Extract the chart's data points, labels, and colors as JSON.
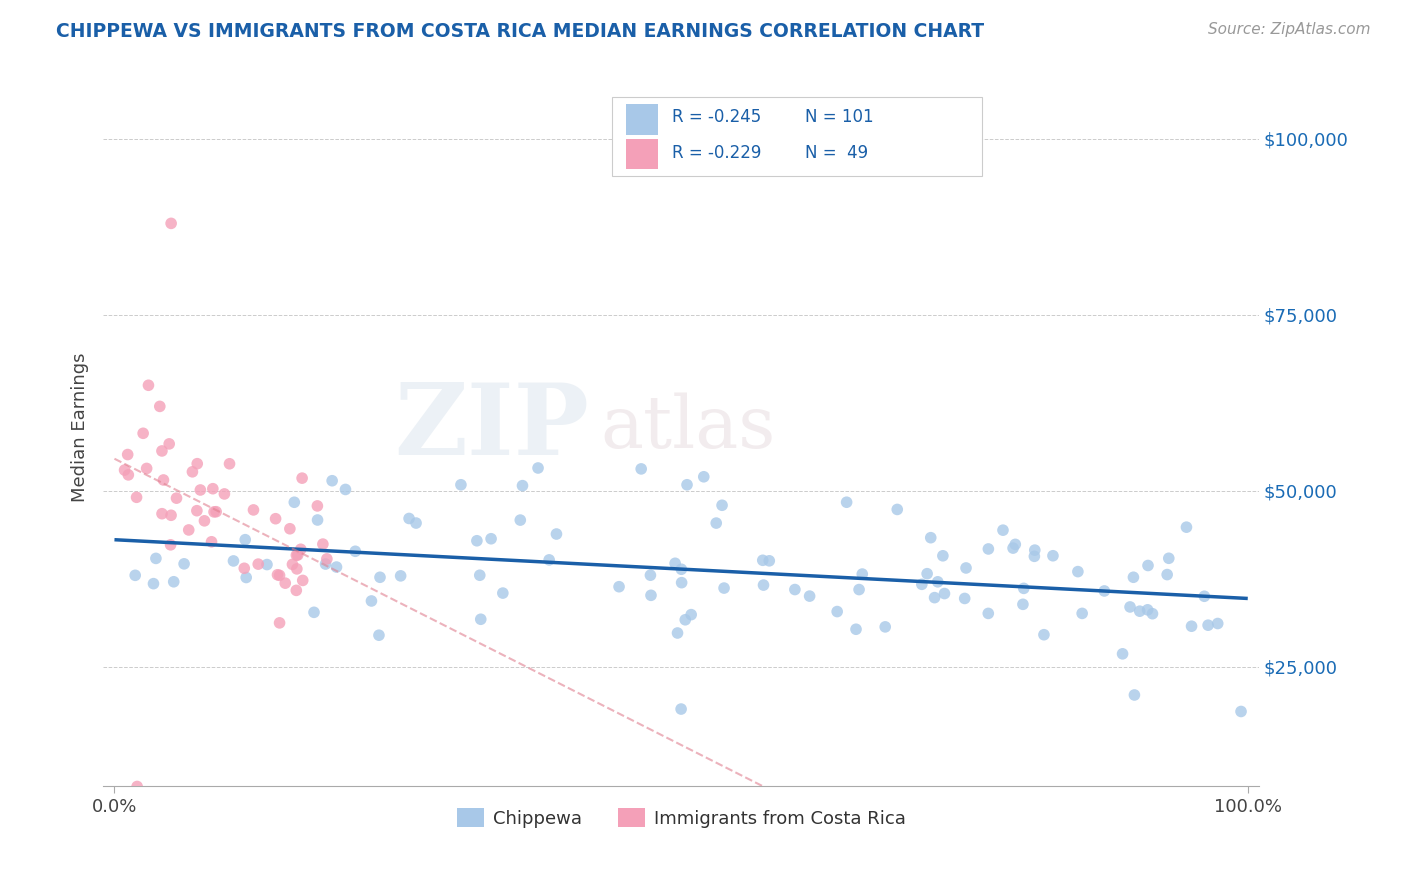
{
  "title": "CHIPPEWA VS IMMIGRANTS FROM COSTA RICA MEDIAN EARNINGS CORRELATION CHART",
  "source_text": "Source: ZipAtlas.com",
  "ylabel": "Median Earnings",
  "blue_color": "#a8c8e8",
  "pink_color": "#f4a0b8",
  "trend_blue_color": "#1a5fa8",
  "trend_pink_color": "#e08090",
  "watermark_zip": "ZIP",
  "watermark_atlas": "atlas",
  "legend_R1": "R = -0.245",
  "legend_N1": "N = 101",
  "legend_R2": "R = -0.229",
  "legend_N2": "N =  49",
  "blue_legend_color": "#a8c8e8",
  "pink_legend_color": "#f4a0b8",
  "ytick_color": "#1a6bb5"
}
